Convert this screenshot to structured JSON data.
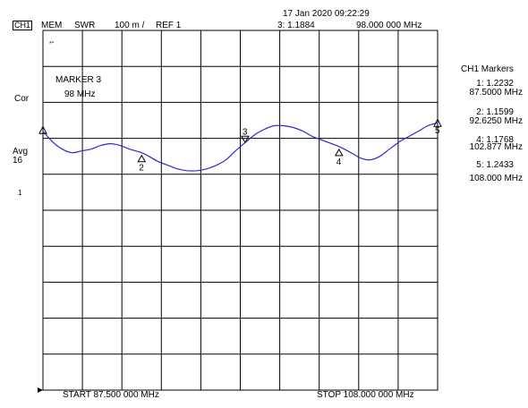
{
  "header": {
    "channel": "CH1",
    "mem": "MEM",
    "format": "SWR",
    "scale": "100 m /",
    "ref": "REF 1",
    "datetime": "17 Jan 2020  09:22:29",
    "active_marker_value": "3: 1.1884",
    "active_marker_freq": "98.000 000 MHz"
  },
  "left": {
    "cor": "Cor",
    "avg": "Avg",
    "avg_count": "16",
    "one": "1",
    "star": "*°"
  },
  "marker_box": {
    "title": "MARKER 3",
    "freq": "98 MHz"
  },
  "markers_panel": {
    "title": "CH1 Markers",
    "items": [
      {
        "value": "1: 1.2232",
        "freq": "87.5000 MHz"
      },
      {
        "value": "2: 1.1599",
        "freq": "92.6250 MHz"
      },
      {
        "value": "4: 1.1768",
        "freq": "102.877 MHz"
      },
      {
        "value": "5: 1.2433",
        "freq": "108.000 MHz"
      }
    ]
  },
  "footer": {
    "start": "START  87.500 000 MHz",
    "stop": "STOP 108.000 000 MHz"
  },
  "colors": {
    "trace": "#2a2ad0",
    "grid": "#000000"
  },
  "chart_data": {
    "type": "line",
    "x_unit": "MHz",
    "xlim": [
      87.5,
      108.0
    ],
    "ylim": [
      0.5,
      1.5
    ],
    "ref_value": 1.0,
    "divisions": {
      "x": 10,
      "y": 10
    },
    "series": [
      {
        "x": [
          87.5,
          88.0,
          88.5,
          89.0,
          89.5,
          90.0,
          90.5,
          91.0,
          91.5,
          92.0,
          92.625,
          93.0,
          93.5,
          94.0,
          94.5,
          95.0,
          95.5,
          96.0,
          96.5,
          97.0,
          97.5,
          98.0,
          98.5,
          99.0,
          99.5,
          100.0,
          100.5,
          101.0,
          101.5,
          102.0,
          102.877,
          103.5,
          104.0,
          104.5,
          105.0,
          105.5,
          106.0,
          106.5,
          107.0,
          107.5,
          108.0
        ],
        "values": [
          1.22,
          1.19,
          1.17,
          1.16,
          1.165,
          1.17,
          1.18,
          1.185,
          1.18,
          1.17,
          1.16,
          1.15,
          1.135,
          1.125,
          1.115,
          1.11,
          1.11,
          1.115,
          1.125,
          1.14,
          1.165,
          1.188,
          1.21,
          1.225,
          1.235,
          1.235,
          1.23,
          1.22,
          1.205,
          1.195,
          1.177,
          1.16,
          1.145,
          1.14,
          1.15,
          1.17,
          1.19,
          1.205,
          1.22,
          1.235,
          1.243
        ]
      }
    ],
    "markers": [
      {
        "id": "1",
        "x": 87.5,
        "y": 1.2232
      },
      {
        "id": "2",
        "x": 92.625,
        "y": 1.1599
      },
      {
        "id": "3",
        "x": 98.0,
        "y": 1.1884
      },
      {
        "id": "4",
        "x": 102.877,
        "y": 1.1768
      },
      {
        "id": "5",
        "x": 108.0,
        "y": 1.2433
      }
    ]
  }
}
